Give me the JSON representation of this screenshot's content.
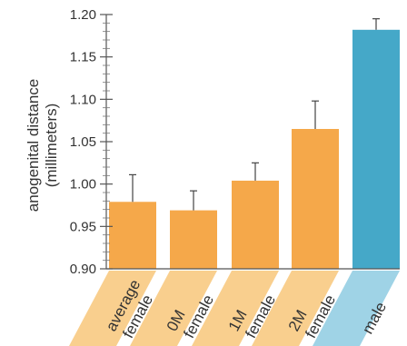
{
  "chart_data": {
    "type": "bar",
    "ylabel": "anogenital distance",
    "ylabel_sub": "(millimeters)",
    "ylim": [
      0.9,
      1.2
    ],
    "yticks": [
      "0.90",
      "0.95",
      "1.00",
      "1.05",
      "1.10",
      "1.15",
      "1.20"
    ],
    "yticks_values": [
      0.9,
      0.95,
      1.0,
      1.05,
      1.1,
      1.15,
      1.2
    ],
    "categories": [
      {
        "line1": "average",
        "line2": "female"
      },
      {
        "line1": "0M",
        "line2": "female"
      },
      {
        "line1": "1M",
        "line2": "female"
      },
      {
        "line1": "2M",
        "line2": "female"
      },
      {
        "line1": "male",
        "line2": ""
      }
    ],
    "values": [
      0.979,
      0.969,
      1.004,
      1.065,
      1.182
    ],
    "error_upper": [
      1.011,
      0.992,
      1.025,
      1.098,
      1.195
    ],
    "colors": [
      "#f5a84a",
      "#f5a84a",
      "#f5a84a",
      "#f5a84a",
      "#45a8c8"
    ],
    "label_band_colors": [
      "#f9cf8e",
      "#f9cf8e",
      "#f9cf8e",
      "#f9cf8e",
      "#9fd3e6"
    ],
    "grid": false
  }
}
